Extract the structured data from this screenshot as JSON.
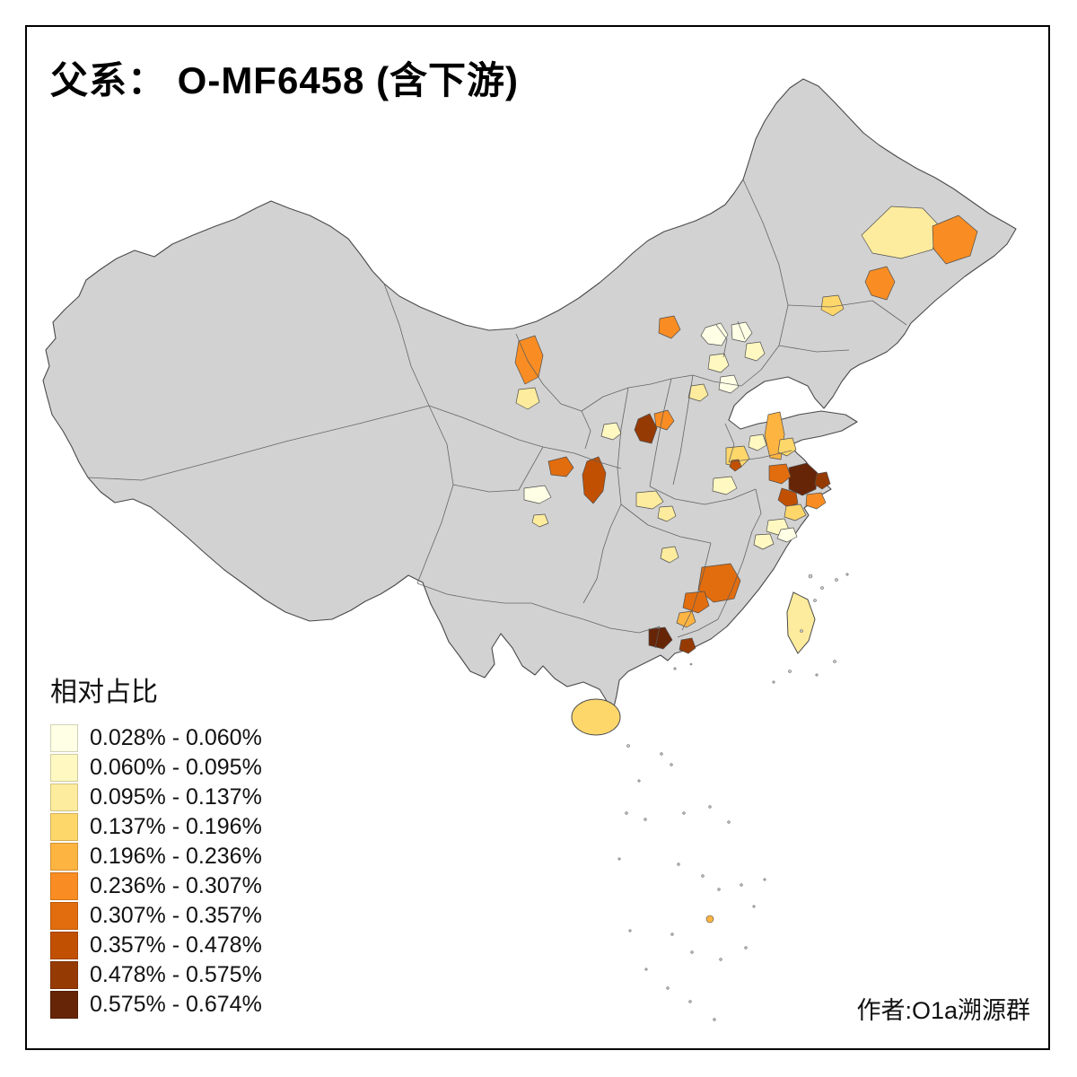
{
  "title": "父系： O-MF6458 (含下游)",
  "credit": "作者:O1a溯源群",
  "legend": {
    "title": "相对占比"
  },
  "map": {
    "base_region_color": "#D2D2D2",
    "border_color": "#4F4F4F",
    "island_color": "#C9C9C9",
    "background": "#FFFFFF"
  },
  "chart_data": {
    "type": "choropleth",
    "region": "China (prefecture level)",
    "title": "父系： O-MF6458 (含下游)",
    "legend_title": "相对占比",
    "bins": [
      {
        "range": "0.028% - 0.060%",
        "color": "#FFFFE5"
      },
      {
        "range": "0.060% - 0.095%",
        "color": "#FFF8C1"
      },
      {
        "range": "0.095% - 0.137%",
        "color": "#FEEC9E"
      },
      {
        "range": "0.137% - 0.196%",
        "color": "#FED76B"
      },
      {
        "range": "0.196% - 0.236%",
        "color": "#FEB441"
      },
      {
        "range": "0.236% - 0.307%",
        "color": "#F98D23"
      },
      {
        "range": "0.307% - 0.357%",
        "color": "#E26D0E"
      },
      {
        "range": "0.357% - 0.478%",
        "color": "#C25002"
      },
      {
        "range": "0.478% - 0.575%",
        "color": "#963A04"
      },
      {
        "range": "0.575% - 0.674%",
        "color": "#662506"
      }
    ]
  }
}
